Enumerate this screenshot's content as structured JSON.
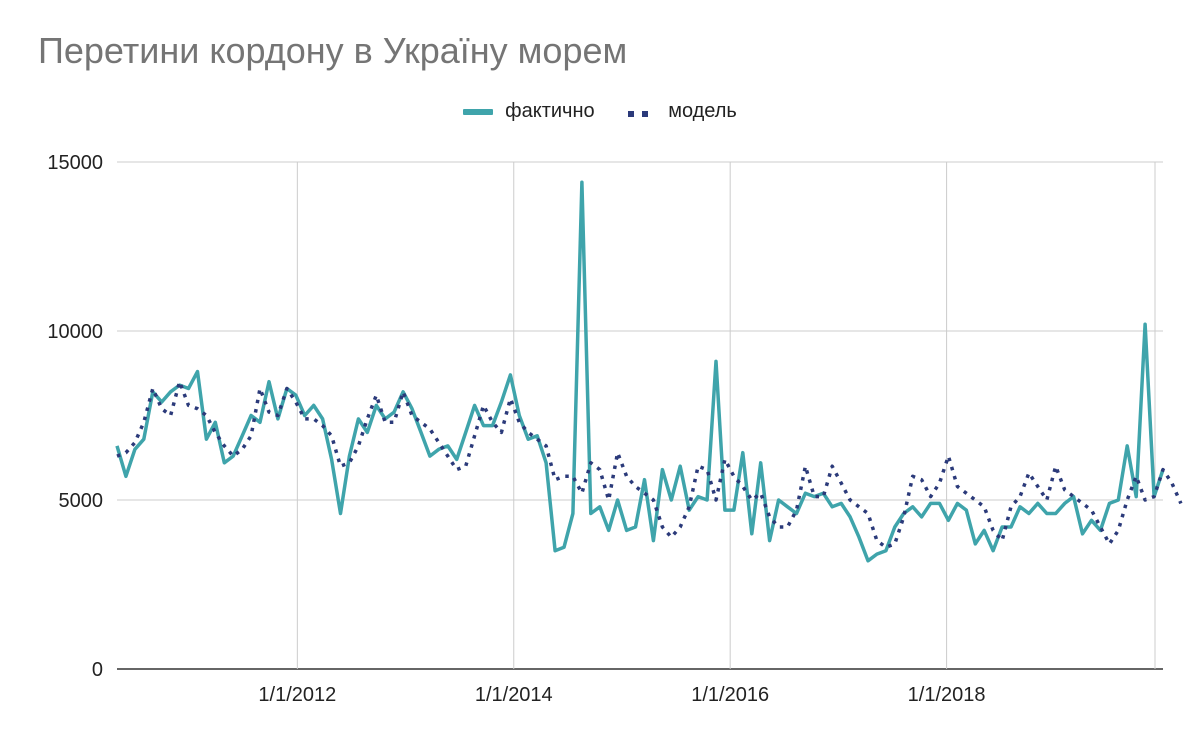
{
  "chart_data": {
    "type": "line",
    "title": "Перетини кордону в Україну морем",
    "xlabel": "",
    "ylabel": "",
    "ylim": [
      0,
      15000
    ],
    "yticks": [
      "0",
      "5000",
      "10000",
      "15000"
    ],
    "xticks": [
      "1/1/2012",
      "1/1/2014",
      "1/1/2016",
      "1/1/2018"
    ],
    "x_range": [
      "2010-05",
      "2020-01"
    ],
    "grid": true,
    "legend_position": "top",
    "series": [
      {
        "name": "фактично",
        "color": "#3fa4ab",
        "style": "solid",
        "values": [
          6600,
          5700,
          6500,
          6800,
          8200,
          7900,
          8200,
          8400,
          8300,
          8800,
          6800,
          7300,
          6100,
          6300,
          6900,
          7500,
          7300,
          8500,
          7400,
          8300,
          8100,
          7500,
          7800,
          7400,
          6200,
          4600,
          6300,
          7400,
          7000,
          7800,
          7400,
          7600,
          8200,
          7700,
          7000,
          6300,
          6500,
          6600,
          6200,
          7000,
          7800,
          7200,
          7200,
          7900,
          8700,
          7500,
          6800,
          6900,
          6100,
          3500,
          3600,
          4600,
          14400,
          4600,
          4800,
          4100,
          5000,
          4100,
          4200,
          5600,
          3800,
          5900,
          5000,
          6000,
          4700,
          5100,
          5000,
          9100,
          4700,
          4700,
          6400,
          4000,
          6100,
          3800,
          5000,
          4800,
          4600,
          5200,
          5100,
          5200,
          4800,
          4900,
          4500,
          3900,
          3200,
          3400,
          3500,
          4200,
          4600,
          4800,
          4500,
          4900,
          4900,
          4400,
          4900,
          4700,
          3700,
          4100,
          3500,
          4200,
          4200,
          4800,
          4600,
          4900,
          4600,
          4600,
          4900,
          5100,
          4000,
          4400,
          4100,
          4900,
          5000,
          6600,
          5100,
          10200,
          5100,
          5900
        ]
      },
      {
        "name": "модель",
        "color": "#2b3a7a",
        "style": "dotted",
        "values": [
          6300,
          6400,
          6700,
          7300,
          8300,
          7700,
          7500,
          8500,
          7800,
          7700,
          7500,
          7000,
          6600,
          6300,
          6500,
          6900,
          8300,
          7600,
          7500,
          8300,
          7900,
          7400,
          7400,
          7200,
          6900,
          6000,
          6100,
          6600,
          7400,
          8100,
          7300,
          7300,
          8200,
          7500,
          7300,
          7100,
          6700,
          6300,
          5900,
          6000,
          6900,
          7800,
          7300,
          7000,
          8000,
          7300,
          7000,
          6800,
          6600,
          5600,
          5700,
          5700,
          5200,
          6100,
          5900,
          5000,
          6400,
          5700,
          5400,
          5200,
          5000,
          4200,
          3900,
          4200,
          4800,
          6000,
          5900,
          5000,
          6200,
          5700,
          5400,
          5000,
          5200,
          4500,
          4200,
          4200,
          4700,
          6000,
          5100,
          5100,
          6000,
          5500,
          5000,
          4800,
          4600,
          3800,
          3600,
          3700,
          4500,
          5700,
          5600,
          5100,
          5500,
          6300,
          5400,
          5200,
          5000,
          4800,
          4100,
          3800,
          4800,
          5100,
          5800,
          5400,
          5000,
          6000,
          5300,
          5100,
          4900,
          4700,
          4200,
          3700,
          4100,
          5000,
          5700,
          5000,
          5100,
          5900,
          5500,
          4900
        ]
      }
    ]
  }
}
